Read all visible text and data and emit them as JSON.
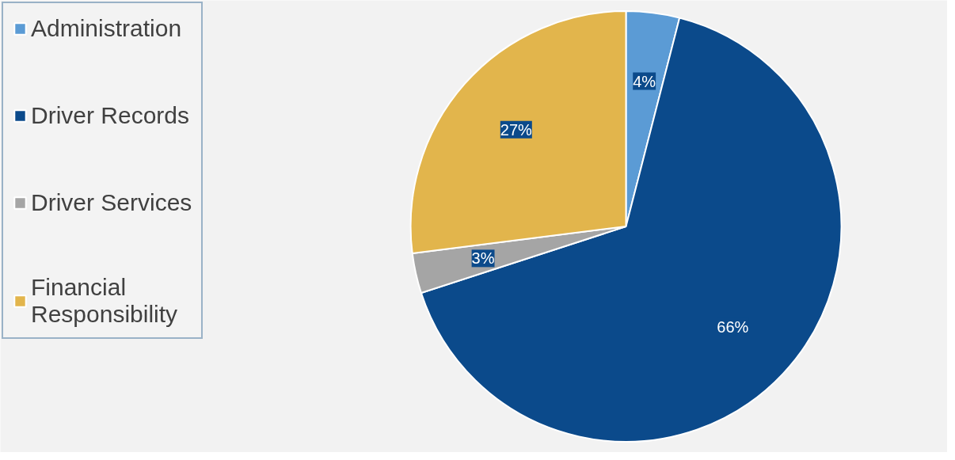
{
  "chart_data": {
    "type": "pie",
    "categories": [
      "Administration",
      "Driver Records",
      "Driver Services",
      "Financial Responsibility"
    ],
    "values": [
      4,
      66,
      3,
      27
    ],
    "colors": [
      "#5b9bd5",
      "#0b4a8b",
      "#a5a5a5",
      "#e2b54c"
    ],
    "value_labels": [
      "4%",
      "66%",
      "3%",
      "27%"
    ],
    "legend": "left"
  }
}
